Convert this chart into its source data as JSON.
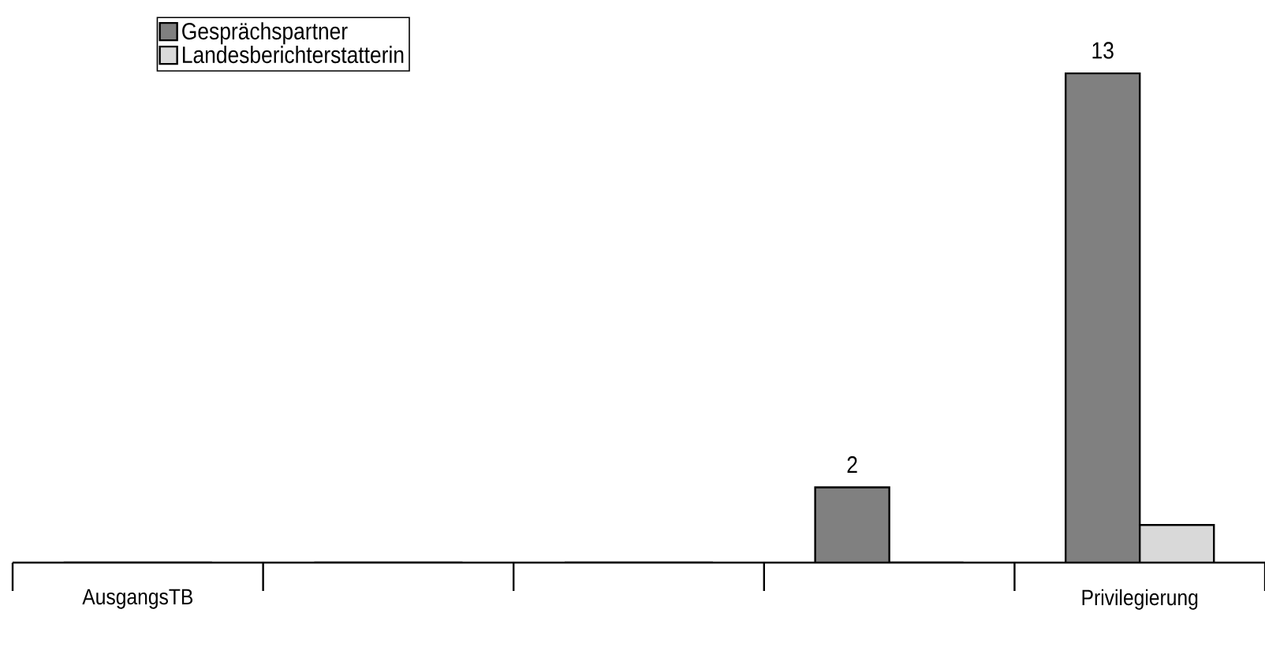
{
  "chart_data": {
    "type": "bar",
    "categories": [
      "AusgangsTB",
      null,
      null,
      null,
      "Privilegierung"
    ],
    "series": [
      {
        "name": "Gesprächspartner",
        "color": "#808080",
        "values": [
          0,
          0,
          0,
          2,
          13
        ],
        "value_labels": [
          null,
          null,
          null,
          "2",
          "13"
        ]
      },
      {
        "name": "Landesberichterstatterin",
        "color": "#d9d9d9",
        "values": [
          0,
          0,
          0,
          0,
          1
        ],
        "value_labels": [
          null,
          null,
          null,
          null,
          null
        ]
      }
    ],
    "legend": "top left"
  }
}
